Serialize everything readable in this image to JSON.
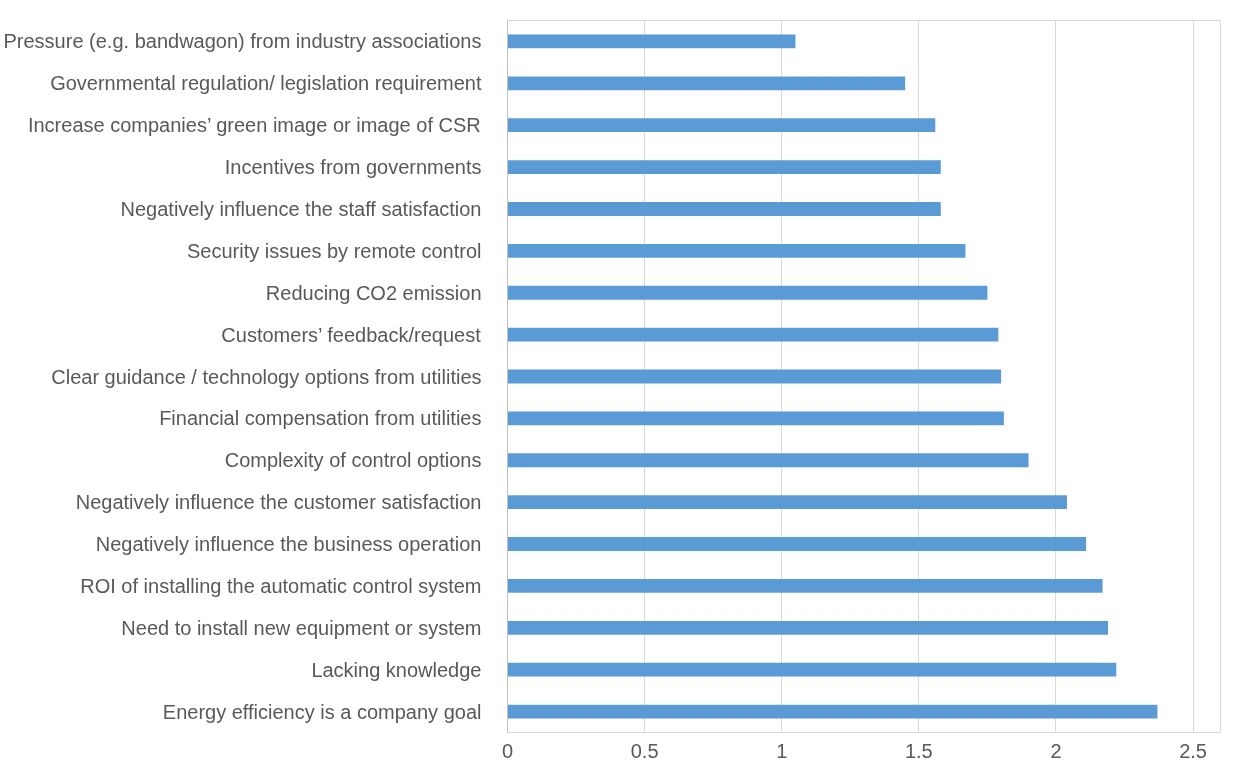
{
  "chart_data": {
    "type": "bar",
    "orientation": "horizontal",
    "categories": [
      "Pressure (e.g. bandwagon) from industry associations",
      "Governmental regulation/ legislation requirement",
      "Increase companies’ green image or image of CSR",
      "Incentives from governments",
      "Negatively influence the staff satisfaction",
      "Security issues by remote control",
      "Reducing CO2 emission",
      "Customers’ feedback/request",
      "Clear guidance / technology options from utilities",
      "Financial compensation from utilities",
      "Complexity of control options",
      "Negatively influence the customer satisfaction",
      "Negatively influence the business operation",
      "ROI of installing the automatic control system",
      "Need to install new equipment or system",
      "Lacking knowledge",
      "Energy efficiency is a company goal"
    ],
    "values": [
      1.05,
      1.45,
      1.56,
      1.58,
      1.58,
      1.67,
      1.75,
      1.79,
      1.8,
      1.81,
      1.9,
      2.04,
      2.11,
      2.17,
      2.19,
      2.22,
      2.37
    ],
    "color": "#5b9bd5",
    "xlim": [
      0,
      2.6
    ],
    "xticks": [
      0,
      0.5,
      1,
      1.5,
      2,
      2.5
    ],
    "grid": "x"
  }
}
